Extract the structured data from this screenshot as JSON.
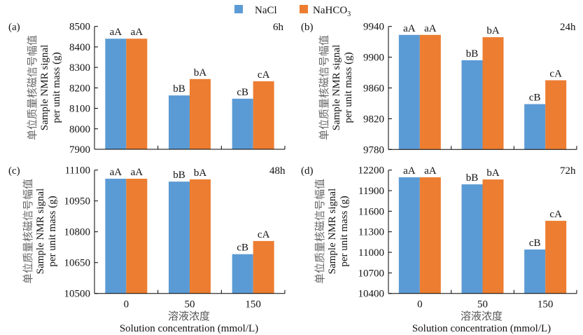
{
  "chart_data": {
    "type": "bar",
    "legend": {
      "position": "top-center",
      "entries": [
        {
          "name": "NaCl",
          "color": "#5B9BD5"
        },
        {
          "name": "NaHCO3",
          "name_main": "NaHCO",
          "name_sub": "3",
          "color": "#ED7D31"
        }
      ]
    },
    "ylabel_cn": "单位质量核磁信号幅值",
    "ylabel_en_line1": "Sample NMR signal",
    "ylabel_en_line2": "per unit mass (g)",
    "xlabel_cn": "溶液浓度",
    "xlabel_en": "Solution concentration (mmol/L)",
    "categories": [
      "0",
      "50",
      "150"
    ],
    "panels": [
      {
        "id": "a",
        "letter": "(a)",
        "time": "6h",
        "ylim": [
          7900,
          8500
        ],
        "yticks": [
          7900,
          8000,
          8100,
          8200,
          8300,
          8400,
          8500
        ],
        "series": [
          {
            "name": "NaCl",
            "values": [
              8440,
              8163,
              8147
            ],
            "labels": [
              "aA",
              "bB",
              "cB"
            ]
          },
          {
            "name": "NaHCO3",
            "values": [
              8440,
              8243,
              8232
            ],
            "labels": [
              "aA",
              "bA",
              "cA"
            ]
          }
        ]
      },
      {
        "id": "b",
        "letter": "(b)",
        "time": "24h",
        "ylim": [
          9780,
          9940
        ],
        "yticks": [
          9780,
          9820,
          9860,
          9900,
          9940
        ],
        "series": [
          {
            "name": "NaCl",
            "values": [
              9929,
              9896,
              9839
            ],
            "labels": [
              "aA",
              "bB",
              "cB"
            ]
          },
          {
            "name": "NaHCO3",
            "values": [
              9929,
              9926,
              9870
            ],
            "labels": [
              "aA",
              "bA",
              "cA"
            ]
          }
        ]
      },
      {
        "id": "c",
        "letter": "(c)",
        "time": "48h",
        "ylim": [
          10500,
          11100
        ],
        "yticks": [
          10500,
          10650,
          10800,
          10950,
          11100
        ],
        "series": [
          {
            "name": "NaCl",
            "values": [
              11058,
              11044,
              10691
            ],
            "labels": [
              "aA",
              "bB",
              "cB"
            ]
          },
          {
            "name": "NaHCO3",
            "values": [
              11058,
              11055,
              10755
            ],
            "labels": [
              "aA",
              "bA",
              "cA"
            ]
          }
        ]
      },
      {
        "id": "d",
        "letter": "(d)",
        "time": "72h",
        "ylim": [
          10400,
          12200
        ],
        "yticks": [
          10400,
          10700,
          11000,
          11300,
          11600,
          11900,
          12200
        ],
        "series": [
          {
            "name": "NaCl",
            "values": [
              12095,
              11992,
              11041
            ],
            "labels": [
              "aA",
              "bB",
              "cB"
            ]
          },
          {
            "name": "NaHCO3",
            "values": [
              12095,
              12063,
              11460
            ],
            "labels": [
              "aA",
              "bA",
              "cA"
            ]
          }
        ]
      }
    ]
  }
}
